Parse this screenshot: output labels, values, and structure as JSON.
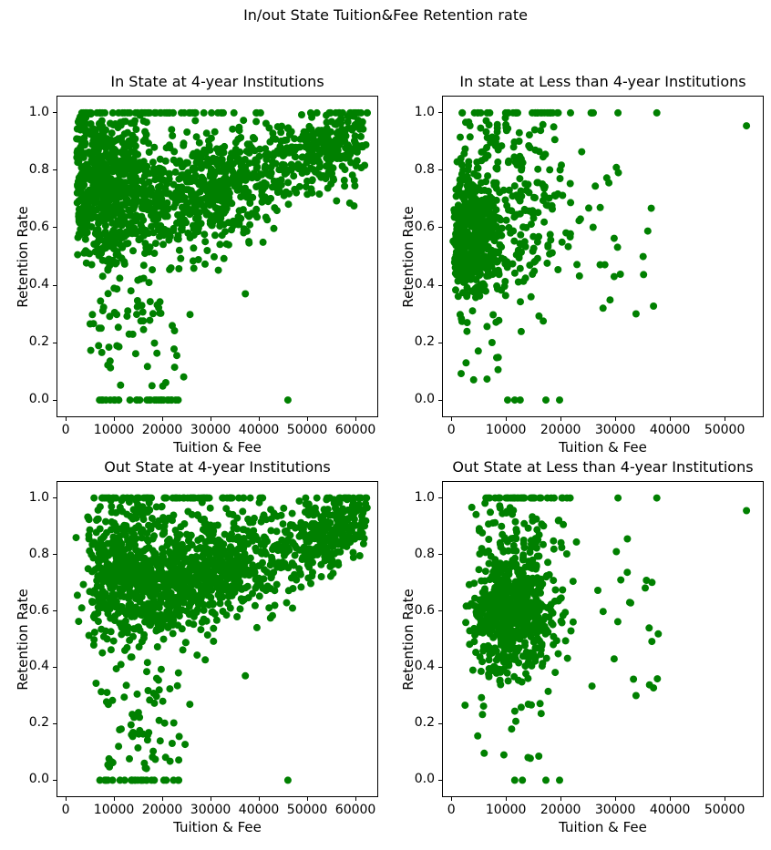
{
  "figure": {
    "title": "In/out State Tuition&Fee Retention rate",
    "background_color": "#ffffff",
    "text_color": "#000000",
    "marker_color": "#008000"
  },
  "chart_data": [
    {
      "type": "scatter",
      "title": "In State at 4-year Institutions",
      "xlabel": "Tuition & Fee",
      "ylabel": "Retention Rate",
      "xlim": [
        -1900,
        64700
      ],
      "ylim": [
        -0.06,
        1.06
      ],
      "xticks": [
        0,
        10000,
        20000,
        30000,
        40000,
        50000,
        60000
      ],
      "yticks": [
        0.0,
        0.2,
        0.4,
        0.6,
        0.8,
        1.0
      ],
      "grid": false,
      "legend": false,
      "marker_color": "#008000",
      "marker_radius": 4,
      "seed": 101,
      "clusters": [
        {
          "n": 650,
          "x": {
            "dist": "normal",
            "mean": 9000,
            "sd": 5500,
            "min": 2200,
            "max": 26000
          },
          "y": {
            "dist": "normal",
            "mean": 0.74,
            "sd": 0.13,
            "min": 0.45,
            "max": 1.0
          }
        },
        {
          "n": 550,
          "x": {
            "dist": "normal",
            "mean": 30000,
            "sd": 9000,
            "min": 16000,
            "max": 52000
          },
          "y": {
            "dist": "trend",
            "intercept": 0.58,
            "slope": 5e-06,
            "noise": 0.095,
            "min": 0.42,
            "max": 1.0
          }
        },
        {
          "n": 280,
          "x": {
            "dist": "normal",
            "mean": 55000,
            "sd": 5500,
            "min": 42000,
            "max": 62500
          },
          "y": {
            "dist": "trend",
            "intercept": 0.55,
            "slope": 6e-06,
            "noise": 0.07,
            "min": 0.6,
            "max": 1.0
          }
        },
        {
          "n": 65,
          "x": {
            "dist": "normal",
            "mean": 16000,
            "sd": 12000,
            "min": 2000,
            "max": 62000
          },
          "y": {
            "dist": "const",
            "value": 1.0
          }
        },
        {
          "n": 70,
          "x": {
            "dist": "normal",
            "mean": 13000,
            "sd": 5500,
            "min": 4500,
            "max": 26000
          },
          "y": {
            "dist": "uniform",
            "min": 0.04,
            "max": 0.46
          }
        },
        {
          "n": 28,
          "x": {
            "dist": "uniform",
            "min": 6200,
            "max": 23500
          },
          "y": {
            "dist": "const",
            "value": 0.0
          }
        },
        {
          "n": 40,
          "x": {
            "dist": "uniform",
            "min": 2200,
            "max": 4200
          },
          "y": {
            "dist": "uniform",
            "min": 0.5,
            "max": 1.0
          }
        }
      ],
      "points": [
        [
          46000,
          0.0
        ],
        [
          37200,
          0.37
        ],
        [
          23000,
          0.155
        ]
      ]
    },
    {
      "type": "scatter",
      "title": "In state at Less than 4-year Institutions",
      "xlabel": "Tuition & Fee",
      "ylabel": "Retention Rate",
      "xlim": [
        -1700,
        57150
      ],
      "ylim": [
        -0.06,
        1.06
      ],
      "xticks": [
        0,
        10000,
        20000,
        30000,
        40000,
        50000
      ],
      "yticks": [
        0.0,
        0.2,
        0.4,
        0.6,
        0.8,
        1.0
      ],
      "grid": false,
      "legend": false,
      "marker_color": "#008000",
      "marker_radius": 4,
      "seed": 202,
      "clusters": [
        {
          "n": 420,
          "x": {
            "dist": "normal",
            "mean": 3200,
            "sd": 2600,
            "min": 250,
            "max": 11000
          },
          "y": {
            "dist": "normal",
            "mean": 0.58,
            "sd": 0.105,
            "min": 0.35,
            "max": 0.84
          }
        },
        {
          "n": 190,
          "x": {
            "dist": "normal",
            "mean": 11500,
            "sd": 5200,
            "min": 3800,
            "max": 24500
          },
          "y": {
            "dist": "normal",
            "mean": 0.61,
            "sd": 0.14,
            "min": 0.22,
            "max": 0.97
          }
        },
        {
          "n": 55,
          "x": {
            "dist": "normal",
            "mean": 8000,
            "sd": 5200,
            "min": 1200,
            "max": 20000
          },
          "y": {
            "dist": "uniform",
            "min": 0.8,
            "max": 0.985
          }
        },
        {
          "n": 18,
          "x": {
            "dist": "uniform",
            "min": 24500,
            "max": 39000
          },
          "y": {
            "dist": "uniform",
            "min": 0.3,
            "max": 0.87
          }
        },
        {
          "n": 38,
          "x": {
            "dist": "normal",
            "mean": 11000,
            "sd": 7000,
            "min": 1900,
            "max": 29000
          },
          "y": {
            "dist": "const",
            "value": 1.0
          }
        },
        {
          "n": 18,
          "x": {
            "dist": "normal",
            "mean": 6000,
            "sd": 4200,
            "min": 900,
            "max": 16000
          },
          "y": {
            "dist": "uniform",
            "min": 0.07,
            "max": 0.3
          }
        }
      ],
      "points": [
        [
          10300,
          0.0
        ],
        [
          11600,
          0.0
        ],
        [
          12600,
          0.0
        ],
        [
          17300,
          0.0
        ],
        [
          19800,
          0.0
        ],
        [
          30500,
          1.0
        ],
        [
          37600,
          1.0
        ],
        [
          54000,
          0.955
        ],
        [
          30200,
          0.81
        ],
        [
          33800,
          0.3
        ],
        [
          37000,
          0.327
        ],
        [
          29800,
          0.43
        ]
      ]
    },
    {
      "type": "scatter",
      "title": "Out State at 4-year Institutions",
      "xlabel": "Tuition & Fee",
      "ylabel": "Retention Rate",
      "xlim": [
        -1900,
        64700
      ],
      "ylim": [
        -0.06,
        1.06
      ],
      "xticks": [
        0,
        10000,
        20000,
        30000,
        40000,
        50000,
        60000
      ],
      "yticks": [
        0.0,
        0.2,
        0.4,
        0.6,
        0.8,
        1.0
      ],
      "grid": false,
      "legend": false,
      "marker_color": "#008000",
      "marker_radius": 4,
      "seed": 303,
      "clusters": [
        {
          "n": 650,
          "x": {
            "dist": "normal",
            "mean": 14000,
            "sd": 7000,
            "min": 4800,
            "max": 32000
          },
          "y": {
            "dist": "normal",
            "mean": 0.73,
            "sd": 0.13,
            "min": 0.45,
            "max": 1.0
          }
        },
        {
          "n": 550,
          "x": {
            "dist": "normal",
            "mean": 31000,
            "sd": 9500,
            "min": 17000,
            "max": 54000
          },
          "y": {
            "dist": "trend",
            "intercept": 0.58,
            "slope": 5e-06,
            "noise": 0.095,
            "min": 0.42,
            "max": 1.0
          }
        },
        {
          "n": 280,
          "x": {
            "dist": "normal",
            "mean": 55000,
            "sd": 5500,
            "min": 42000,
            "max": 62500
          },
          "y": {
            "dist": "trend",
            "intercept": 0.55,
            "slope": 6e-06,
            "noise": 0.07,
            "min": 0.6,
            "max": 1.0
          }
        },
        {
          "n": 65,
          "x": {
            "dist": "normal",
            "mean": 18000,
            "sd": 12000,
            "min": 4500,
            "max": 62000
          },
          "y": {
            "dist": "const",
            "value": 1.0
          }
        },
        {
          "n": 70,
          "x": {
            "dist": "normal",
            "mean": 15000,
            "sd": 5500,
            "min": 6000,
            "max": 30000
          },
          "y": {
            "dist": "uniform",
            "min": 0.04,
            "max": 0.46
          }
        },
        {
          "n": 28,
          "x": {
            "dist": "uniform",
            "min": 6500,
            "max": 24000
          },
          "y": {
            "dist": "const",
            "value": 0.0
          }
        },
        {
          "n": 8,
          "x": {
            "dist": "uniform",
            "min": 2000,
            "max": 4800
          },
          "y": {
            "dist": "uniform",
            "min": 0.55,
            "max": 0.95
          }
        }
      ],
      "points": [
        [
          46000,
          0.0
        ],
        [
          37200,
          0.37
        ],
        [
          23500,
          0.155
        ]
      ]
    },
    {
      "type": "scatter",
      "title": "Out State at Less than 4-year Institutions",
      "xlabel": "Tuition & Fee",
      "ylabel": "Retention Rate",
      "xlim": [
        -1700,
        57150
      ],
      "ylim": [
        -0.06,
        1.06
      ],
      "xticks": [
        0,
        10000,
        20000,
        30000,
        40000,
        50000
      ],
      "yticks": [
        0.0,
        0.2,
        0.4,
        0.6,
        0.8,
        1.0
      ],
      "grid": false,
      "legend": false,
      "marker_color": "#008000",
      "marker_radius": 4,
      "seed": 404,
      "clusters": [
        {
          "n": 420,
          "x": {
            "dist": "normal",
            "mean": 10500,
            "sd": 3600,
            "min": 2600,
            "max": 20500
          },
          "y": {
            "dist": "normal",
            "mean": 0.58,
            "sd": 0.105,
            "min": 0.35,
            "max": 0.84
          }
        },
        {
          "n": 190,
          "x": {
            "dist": "normal",
            "mean": 13000,
            "sd": 5200,
            "min": 4500,
            "max": 25000
          },
          "y": {
            "dist": "normal",
            "mean": 0.61,
            "sd": 0.14,
            "min": 0.22,
            "max": 0.97
          }
        },
        {
          "n": 55,
          "x": {
            "dist": "normal",
            "mean": 11000,
            "sd": 5200,
            "min": 3000,
            "max": 21500
          },
          "y": {
            "dist": "uniform",
            "min": 0.8,
            "max": 0.985
          }
        },
        {
          "n": 18,
          "x": {
            "dist": "uniform",
            "min": 24500,
            "max": 39000
          },
          "y": {
            "dist": "uniform",
            "min": 0.3,
            "max": 0.87
          }
        },
        {
          "n": 38,
          "x": {
            "dist": "normal",
            "mean": 13000,
            "sd": 7000,
            "min": 3000,
            "max": 29500
          },
          "y": {
            "dist": "const",
            "value": 1.0
          }
        },
        {
          "n": 18,
          "x": {
            "dist": "normal",
            "mean": 9000,
            "sd": 4200,
            "min": 2200,
            "max": 16500
          },
          "y": {
            "dist": "uniform",
            "min": 0.07,
            "max": 0.3
          }
        }
      ],
      "points": [
        [
          11600,
          0.0
        ],
        [
          13000,
          0.0
        ],
        [
          17300,
          0.0
        ],
        [
          19800,
          0.0
        ],
        [
          30500,
          1.0
        ],
        [
          37600,
          1.0
        ],
        [
          54000,
          0.955
        ],
        [
          30200,
          0.81
        ],
        [
          33800,
          0.3
        ],
        [
          37000,
          0.327
        ],
        [
          29800,
          0.43
        ]
      ]
    }
  ]
}
